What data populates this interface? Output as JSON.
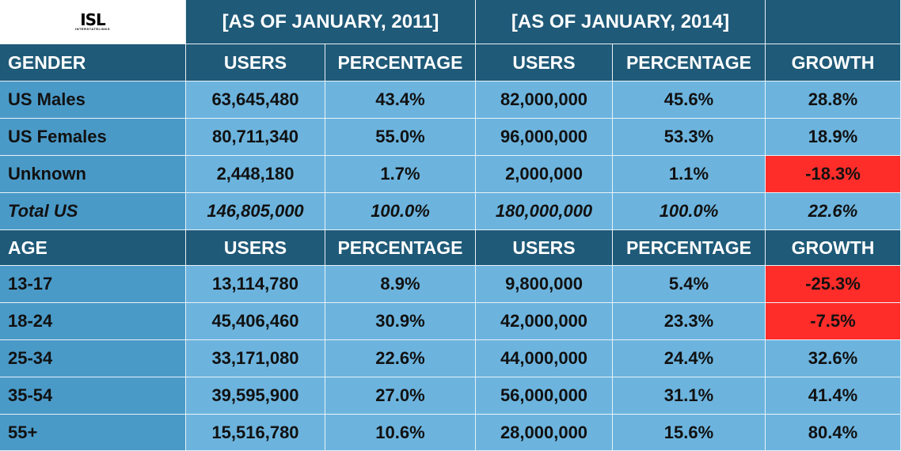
{
  "logo": {
    "mark": "ISL",
    "sub": "INTERSTATELINKS"
  },
  "periods": [
    "[AS OF JANUARY, 2011]",
    "[AS OF JANUARY, 2014]"
  ],
  "gender_section": {
    "headers": [
      "GENDER",
      "USERS",
      "PERCENTAGE",
      "USERS",
      "PERCENTAGE",
      "GROWTH"
    ],
    "rows": [
      [
        "US Males",
        "63,645,480",
        "43.4%",
        "82,000,000",
        "45.6%",
        "28.8%"
      ],
      [
        "US Females",
        "80,711,340",
        "55.0%",
        "96,000,000",
        "53.3%",
        "18.9%"
      ],
      [
        "Unknown",
        "2,448,180",
        "1.7%",
        "2,000,000",
        "1.1%",
        "-18.3%"
      ],
      [
        "Total US",
        "146,805,000",
        "100.0%",
        "180,000,000",
        "100.0%",
        "22.6%"
      ]
    ]
  },
  "age_section": {
    "headers": [
      "AGE",
      "USERS",
      "PERCENTAGE",
      "USERS",
      "PERCENTAGE",
      "GROWTH"
    ],
    "rows": [
      [
        "13-17",
        "13,114,780",
        "8.9%",
        "9,800,000",
        "5.4%",
        "-25.3%"
      ],
      [
        "18-24",
        "45,406,460",
        "30.9%",
        "42,000,000",
        "23.3%",
        "-7.5%"
      ],
      [
        "25-34",
        "33,171,080",
        "22.6%",
        "44,000,000",
        "24.4%",
        "32.6%"
      ],
      [
        "35-54",
        "39,595,900",
        "27.0%",
        "56,000,000",
        "31.1%",
        "41.4%"
      ],
      [
        "55+",
        "15,516,780",
        "10.6%",
        "28,000,000",
        "15.6%",
        "80.4%"
      ]
    ]
  },
  "colors": {
    "header": "#1f5a78",
    "cell": "#6cb4de",
    "label": "#4a9ac8",
    "negative": "#ff2d2a"
  }
}
